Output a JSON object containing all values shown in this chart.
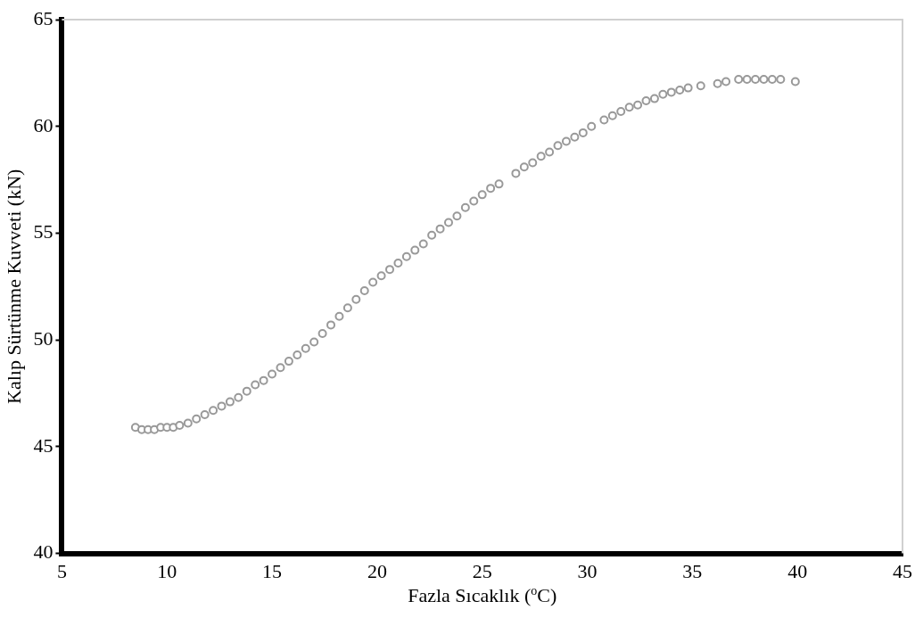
{
  "chart_data": {
    "type": "scatter",
    "xlabel": "Fazla Sıcaklık ($^{o}$C)",
    "ylabel": "Kalıp Sürtünme Kuvveti (kN)",
    "xlim": [
      5,
      45
    ],
    "xticks": [
      5,
      10,
      15,
      20,
      25,
      30,
      35,
      40,
      45
    ],
    "ylim": [
      40,
      65
    ],
    "yticks": [
      40,
      45,
      50,
      55,
      60,
      65
    ],
    "grid": false,
    "legend": false,
    "marker": "circle",
    "series": [
      {
        "color": "#999999",
        "x": [
          8.5,
          8.8,
          9.1,
          9.4,
          9.7,
          10.0,
          10.3,
          10.6,
          11.0,
          11.4,
          11.8,
          12.2,
          12.6,
          13.0,
          13.4,
          13.8,
          14.2,
          14.6,
          15.0,
          15.4,
          15.8,
          16.2,
          16.6,
          17.0,
          17.4,
          17.8,
          18.2,
          18.6,
          19.0,
          19.4,
          19.8,
          20.2,
          20.6,
          21.0,
          21.4,
          21.8,
          22.2,
          22.6,
          23.0,
          23.4,
          23.8,
          24.2,
          24.6,
          25.0,
          25.4,
          25.8,
          26.6,
          27.0,
          27.4,
          27.8,
          28.2,
          28.6,
          29.0,
          29.4,
          29.8,
          30.2,
          30.8,
          31.2,
          31.6,
          32.0,
          32.4,
          32.8,
          33.2,
          33.6,
          34.0,
          34.4,
          34.8,
          35.4,
          36.2,
          36.6,
          37.2,
          37.6,
          38.0,
          38.4,
          38.8,
          39.2,
          39.9
        ],
        "values": [
          45.9,
          45.8,
          45.8,
          45.8,
          45.9,
          45.9,
          45.9,
          46.0,
          46.1,
          46.3,
          46.5,
          46.7,
          46.9,
          47.1,
          47.3,
          47.6,
          47.9,
          48.1,
          48.4,
          48.7,
          49.0,
          49.3,
          49.6,
          49.9,
          50.3,
          50.7,
          51.1,
          51.5,
          51.9,
          52.3,
          52.7,
          53.0,
          53.3,
          53.6,
          53.9,
          54.2,
          54.5,
          54.9,
          55.2,
          55.5,
          55.8,
          56.2,
          56.5,
          56.8,
          57.1,
          57.3,
          57.8,
          58.1,
          58.3,
          58.6,
          58.8,
          59.1,
          59.3,
          59.5,
          59.7,
          60.0,
          60.3,
          60.5,
          60.7,
          60.9,
          61.0,
          61.2,
          61.3,
          61.5,
          61.6,
          61.7,
          61.8,
          61.9,
          62.0,
          62.1,
          62.2,
          62.2,
          62.2,
          62.2,
          62.2,
          62.2,
          62.1
        ]
      }
    ]
  }
}
